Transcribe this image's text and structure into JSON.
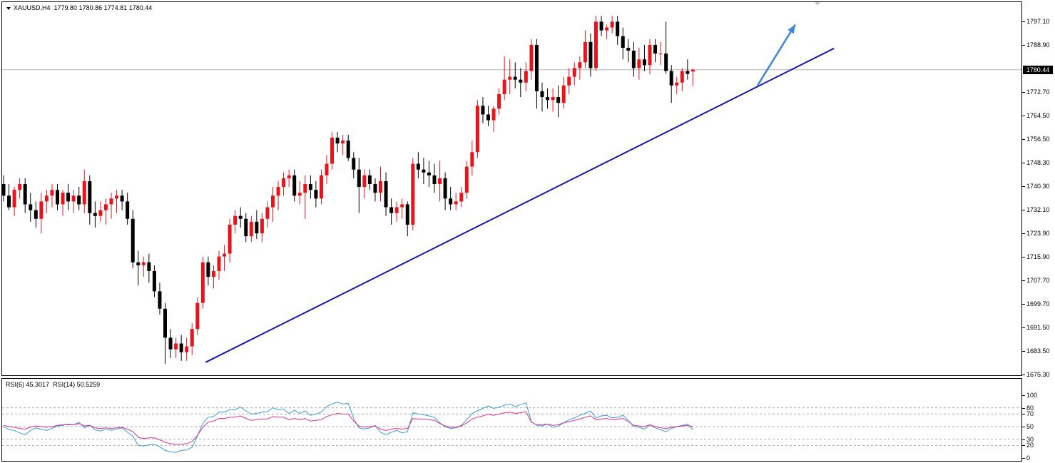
{
  "header": {
    "symbol": "XAUUSD,H4",
    "open": "1779.80",
    "high": "1780.86",
    "low": "1774.81",
    "close": "1780.44"
  },
  "current_price_label": "1780.44",
  "rsi_header": {
    "rsi6_label": "RSI(6)",
    "rsi6_value": "45.3017",
    "rsi14_label": "RSI(14)",
    "rsi14_value": "50.5259"
  },
  "colors": {
    "bull": "#e8141c",
    "bear": "#000000",
    "trendline": "#1a1aa6",
    "arrow": "#3d85d6",
    "rsi6": "#3a9ad9",
    "rsi14": "#d6308a"
  },
  "chart_data": [
    {
      "type": "candlestick",
      "title": "XAUUSD,H4",
      "ylim": [
        1674.0,
        1801.0
      ],
      "price_ticks": [
        "1797.10",
        "1788.90",
        "1780.44",
        "1772.70",
        "1764.50",
        "1756.50",
        "1748.30",
        "1740.30",
        "1732.10",
        "1723.90",
        "1715.90",
        "1707.70",
        "1699.70",
        "1691.50",
        "1683.50",
        "1675.30"
      ],
      "current_price": 1780.44,
      "candles": [
        [
          1741,
          1744,
          1735,
          1737
        ],
        [
          1737,
          1741,
          1732,
          1733
        ],
        [
          1733,
          1740,
          1730,
          1739
        ],
        [
          1739,
          1743,
          1736,
          1741
        ],
        [
          1741,
          1743,
          1731,
          1734
        ],
        [
          1734,
          1738,
          1728,
          1732
        ],
        [
          1732,
          1735,
          1726,
          1729
        ],
        [
          1729,
          1738,
          1724,
          1735
        ],
        [
          1735,
          1739,
          1731,
          1737
        ],
        [
          1737,
          1741,
          1733,
          1739
        ],
        [
          1739,
          1741,
          1732,
          1734
        ],
        [
          1734,
          1739,
          1730,
          1738
        ],
        [
          1738,
          1741,
          1732,
          1735
        ],
        [
          1735,
          1739,
          1731,
          1737
        ],
        [
          1737,
          1740,
          1732,
          1734
        ],
        [
          1734,
          1746,
          1731,
          1742
        ],
        [
          1742,
          1744,
          1727,
          1731
        ],
        [
          1731,
          1735,
          1726,
          1730
        ],
        [
          1730,
          1735,
          1728,
          1732
        ],
        [
          1732,
          1736,
          1727,
          1734
        ],
        [
          1734,
          1738,
          1729,
          1736
        ],
        [
          1736,
          1739,
          1731,
          1737
        ],
        [
          1737,
          1739,
          1732,
          1735
        ],
        [
          1735,
          1738,
          1727,
          1729
        ],
        [
          1729,
          1732,
          1712,
          1714
        ],
        [
          1714,
          1718,
          1706,
          1713
        ],
        [
          1713,
          1716,
          1709,
          1714
        ],
        [
          1714,
          1717,
          1707,
          1711
        ],
        [
          1711,
          1713,
          1702,
          1704
        ],
        [
          1704,
          1707,
          1696,
          1698
        ],
        [
          1698,
          1700,
          1679,
          1688
        ],
        [
          1688,
          1691,
          1681,
          1684
        ],
        [
          1684,
          1688,
          1681,
          1686
        ],
        [
          1686,
          1689,
          1680,
          1683
        ],
        [
          1683,
          1688,
          1680,
          1685
        ],
        [
          1685,
          1693,
          1682,
          1691
        ],
        [
          1691,
          1702,
          1689,
          1700
        ],
        [
          1700,
          1716,
          1698,
          1714
        ],
        [
          1714,
          1716,
          1706,
          1709
        ],
        [
          1709,
          1713,
          1705,
          1711
        ],
        [
          1711,
          1718,
          1708,
          1716
        ],
        [
          1716,
          1720,
          1711,
          1717
        ],
        [
          1717,
          1729,
          1714,
          1727
        ],
        [
          1727,
          1732,
          1724,
          1730
        ],
        [
          1730,
          1733,
          1726,
          1729
        ],
        [
          1729,
          1731,
          1721,
          1723
        ],
        [
          1723,
          1730,
          1721,
          1728
        ],
        [
          1728,
          1732,
          1722,
          1724
        ],
        [
          1724,
          1731,
          1721,
          1729
        ],
        [
          1729,
          1735,
          1726,
          1733
        ],
        [
          1733,
          1740,
          1728,
          1737
        ],
        [
          1737,
          1742,
          1732,
          1740
        ],
        [
          1740,
          1745,
          1737,
          1743
        ],
        [
          1743,
          1746,
          1740,
          1744
        ],
        [
          1744,
          1746,
          1735,
          1737
        ],
        [
          1737,
          1742,
          1734,
          1738
        ],
        [
          1738,
          1744,
          1729,
          1741
        ],
        [
          1741,
          1744,
          1736,
          1739
        ],
        [
          1739,
          1742,
          1733,
          1736
        ],
        [
          1736,
          1746,
          1734,
          1744
        ],
        [
          1744,
          1751,
          1741,
          1748
        ],
        [
          1748,
          1759,
          1746,
          1757
        ],
        [
          1757,
          1759,
          1752,
          1755
        ],
        [
          1755,
          1758,
          1751,
          1756
        ],
        [
          1756,
          1758,
          1749,
          1750
        ],
        [
          1750,
          1752,
          1743,
          1746
        ],
        [
          1746,
          1750,
          1731,
          1740
        ],
        [
          1740,
          1746,
          1736,
          1744
        ],
        [
          1744,
          1746,
          1739,
          1741
        ],
        [
          1741,
          1743,
          1735,
          1738
        ],
        [
          1738,
          1747,
          1735,
          1742
        ],
        [
          1742,
          1745,
          1730,
          1733
        ],
        [
          1733,
          1736,
          1727,
          1731
        ],
        [
          1731,
          1735,
          1728,
          1733
        ],
        [
          1733,
          1736,
          1729,
          1734
        ],
        [
          1734,
          1735,
          1723,
          1727
        ],
        [
          1727,
          1750,
          1725,
          1748
        ],
        [
          1748,
          1752,
          1743,
          1746
        ],
        [
          1746,
          1750,
          1741,
          1745
        ],
        [
          1745,
          1749,
          1740,
          1744
        ],
        [
          1744,
          1748,
          1738,
          1741
        ],
        [
          1741,
          1749,
          1735,
          1743
        ],
        [
          1743,
          1745,
          1732,
          1736
        ],
        [
          1736,
          1740,
          1732,
          1734
        ],
        [
          1734,
          1738,
          1732,
          1735
        ],
        [
          1735,
          1740,
          1733,
          1738
        ],
        [
          1738,
          1749,
          1736,
          1747
        ],
        [
          1747,
          1756,
          1744,
          1752
        ],
        [
          1752,
          1770,
          1750,
          1768
        ],
        [
          1768,
          1771,
          1762,
          1765
        ],
        [
          1765,
          1768,
          1761,
          1763
        ],
        [
          1763,
          1768,
          1759,
          1767
        ],
        [
          1767,
          1774,
          1765,
          1772
        ],
        [
          1772,
          1785,
          1770,
          1777
        ],
        [
          1777,
          1784,
          1772,
          1778
        ],
        [
          1778,
          1783,
          1774,
          1777
        ],
        [
          1777,
          1781,
          1771,
          1776
        ],
        [
          1776,
          1783,
          1773,
          1780
        ],
        [
          1780,
          1791,
          1777,
          1789
        ],
        [
          1789,
          1791,
          1767,
          1773
        ],
        [
          1773,
          1776,
          1766,
          1771
        ],
        [
          1771,
          1774,
          1767,
          1770
        ],
        [
          1770,
          1774,
          1766,
          1771
        ],
        [
          1771,
          1775,
          1764,
          1769
        ],
        [
          1769,
          1778,
          1767,
          1775
        ],
        [
          1775,
          1781,
          1772,
          1778
        ],
        [
          1778,
          1783,
          1775,
          1781
        ],
        [
          1781,
          1785,
          1777,
          1783
        ],
        [
          1783,
          1794,
          1781,
          1790
        ],
        [
          1790,
          1793,
          1778,
          1781
        ],
        [
          1781,
          1799,
          1780,
          1797
        ],
        [
          1797,
          1799,
          1792,
          1794
        ],
        [
          1794,
          1796,
          1791,
          1795
        ],
        [
          1795,
          1799,
          1793,
          1797
        ],
        [
          1797,
          1799,
          1789,
          1792
        ],
        [
          1792,
          1795,
          1784,
          1788
        ],
        [
          1788,
          1791,
          1783,
          1787
        ],
        [
          1787,
          1790,
          1778,
          1781
        ],
        [
          1781,
          1788,
          1777,
          1784
        ],
        [
          1784,
          1789,
          1780,
          1782
        ],
        [
          1782,
          1791,
          1779,
          1789
        ],
        [
          1789,
          1791,
          1783,
          1786
        ],
        [
          1786,
          1790,
          1782,
          1786
        ],
        [
          1786,
          1797,
          1779,
          1780
        ],
        [
          1780,
          1782,
          1769,
          1775
        ],
        [
          1775,
          1778,
          1772,
          1776
        ],
        [
          1776,
          1781,
          1773,
          1780
        ],
        [
          1780,
          1784,
          1777,
          1779
        ],
        [
          1779.8,
          1780.86,
          1774.81,
          1780.44
        ]
      ],
      "trendline": [
        [
          37.5,
          1679.5
        ],
        [
          154.2,
          1787.8
        ]
      ],
      "arrow": [
        [
          140,
          1775
        ],
        [
          147,
          1796
        ]
      ]
    },
    {
      "type": "line",
      "title": "RSI",
      "ylim": [
        0,
        100
      ],
      "levels": [
        20,
        30,
        50,
        70,
        80
      ],
      "tick_labels": [
        "100",
        "80",
        "70",
        "50",
        "30",
        "20",
        "0"
      ],
      "series": [
        {
          "name": "RSI(6)",
          "values": [
            50,
            45,
            44,
            40,
            37,
            44,
            48,
            46,
            44,
            47,
            51,
            52,
            54,
            53,
            57,
            48,
            52,
            45,
            43,
            46,
            44,
            46,
            48,
            41,
            35,
            20,
            19,
            21,
            22,
            18,
            12,
            10,
            9,
            12,
            13,
            17,
            35,
            55,
            65,
            66,
            73,
            73,
            77,
            77,
            81,
            75,
            70,
            71,
            73,
            74,
            80,
            77,
            78,
            71,
            76,
            71,
            75,
            68,
            70,
            73,
            82,
            86,
            89,
            86,
            87,
            63,
            48,
            46,
            48,
            52,
            41,
            37,
            41,
            44,
            40,
            42,
            72,
            70,
            69,
            67,
            65,
            56,
            50,
            47,
            48,
            52,
            61,
            71,
            75,
            79,
            83,
            79,
            81,
            84,
            86,
            82,
            85,
            88,
            58,
            52,
            51,
            54,
            49,
            51,
            56,
            61,
            64,
            68,
            71,
            75,
            64,
            67,
            68,
            64,
            65,
            68,
            60,
            50,
            49,
            46,
            53,
            48,
            45,
            42,
            47,
            50,
            52,
            54,
            45
          ]
        },
        {
          "name": "RSI(14)",
          "values": [
            52,
            50,
            49,
            47,
            46,
            49,
            51,
            50,
            49,
            50,
            52,
            53,
            53,
            53,
            55,
            51,
            52,
            48,
            47,
            48,
            47,
            48,
            49,
            46,
            42,
            33,
            31,
            32,
            32,
            29,
            25,
            23,
            22,
            22,
            23,
            26,
            36,
            49,
            57,
            59,
            63,
            63,
            65,
            65,
            67,
            63,
            60,
            61,
            62,
            62,
            66,
            65,
            65,
            61,
            63,
            61,
            63,
            59,
            60,
            61,
            66,
            69,
            71,
            70,
            70,
            59,
            51,
            49,
            50,
            51,
            46,
            44,
            46,
            47,
            46,
            47,
            63,
            62,
            62,
            61,
            60,
            55,
            51,
            49,
            49,
            51,
            56,
            62,
            65,
            67,
            70,
            68,
            70,
            72,
            73,
            71,
            72,
            74,
            57,
            53,
            53,
            54,
            52,
            53,
            56,
            58,
            60,
            62,
            65,
            67,
            61,
            62,
            63,
            61,
            62,
            63,
            58,
            52,
            51,
            50,
            53,
            50,
            48,
            47,
            49,
            50,
            51,
            52,
            50
          ]
        }
      ]
    }
  ]
}
